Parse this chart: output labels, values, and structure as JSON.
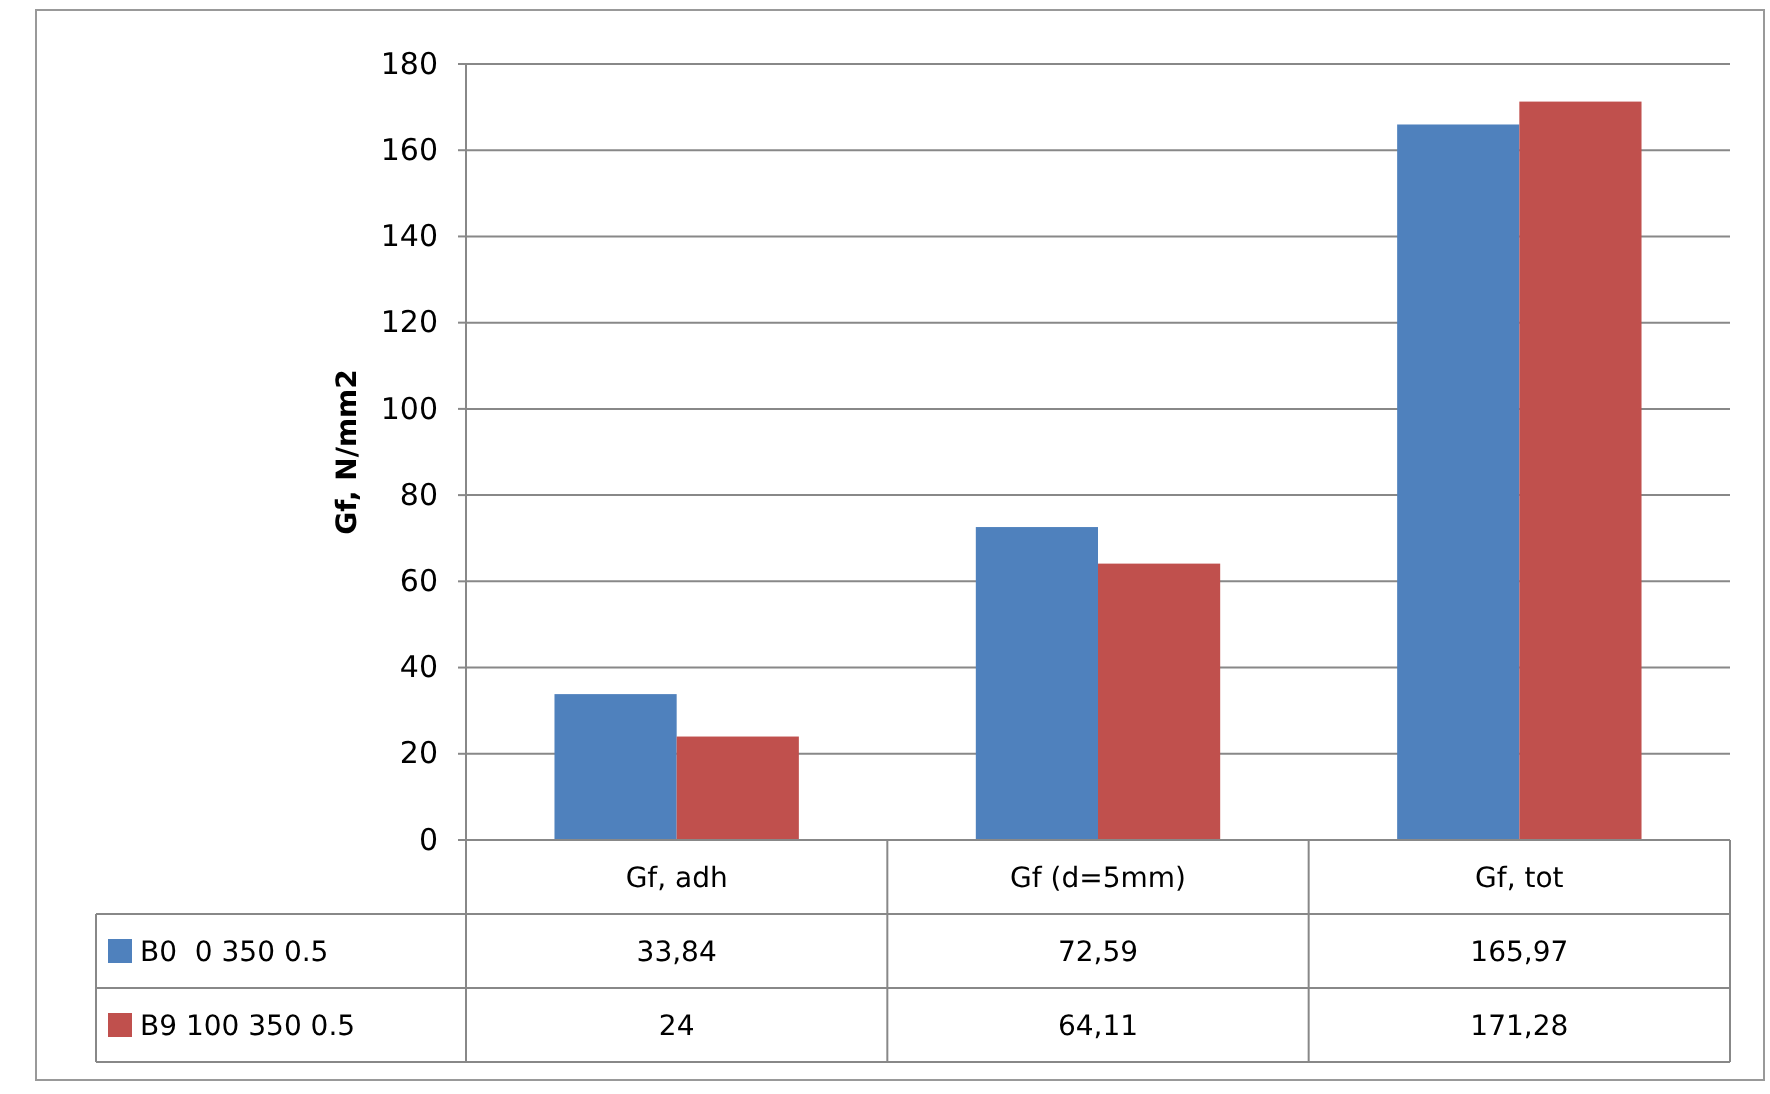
{
  "chart_data": {
    "type": "bar",
    "ylabel": "Gf, N/mm2",
    "categories": [
      "Gf, adh",
      "Gf (d=5mm)",
      "Gf, tot"
    ],
    "series": [
      {
        "name": "B0  0 350 0.5",
        "color": "#4f81bd",
        "values": [
          33.84,
          72.59,
          165.97
        ],
        "value_labels": [
          "33,84",
          "72,59",
          "165,97"
        ]
      },
      {
        "name": "B9 100 350 0.5",
        "color": "#c0504d",
        "values": [
          24,
          64.11,
          171.28
        ],
        "value_labels": [
          "24",
          "64,11",
          "171,28"
        ]
      }
    ],
    "ylim": [
      0,
      180
    ],
    "yticks": [
      0,
      20,
      40,
      60,
      80,
      100,
      120,
      140,
      160,
      180
    ],
    "grid": "y",
    "legend": "bottom"
  }
}
